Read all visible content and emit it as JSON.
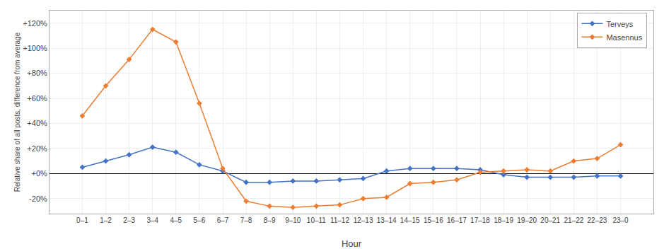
{
  "chart_data": {
    "type": "line",
    "xlabel": "Hour",
    "ylabel": "Relative share of all posts, difference from average",
    "categories": [
      "0–1",
      "1–2",
      "2–3",
      "3–4",
      "4–5",
      "5–6",
      "6–7",
      "7–8",
      "8–9",
      "9–10",
      "10–11",
      "11–12",
      "12–13",
      "13–14",
      "14–15",
      "15–16",
      "16–17",
      "17–18",
      "18–19",
      "19–20",
      "20–21",
      "21–22",
      "22–23",
      "23–0"
    ],
    "series": [
      {
        "name": "Terveys",
        "color": "#4472c4",
        "marker": "diamond",
        "values": [
          0.05,
          0.1,
          0.15,
          0.21,
          0.17,
          0.07,
          0.02,
          -0.07,
          -0.07,
          -0.06,
          -0.06,
          -0.05,
          -0.04,
          0.02,
          0.04,
          0.04,
          0.04,
          0.03,
          -0.01,
          -0.03,
          -0.03,
          -0.03,
          -0.02,
          -0.02
        ]
      },
      {
        "name": "Masennus",
        "color": "#ed7d31",
        "marker": "diamond",
        "values": [
          0.46,
          0.7,
          0.91,
          1.15,
          1.05,
          0.56,
          0.04,
          -0.22,
          -0.26,
          -0.27,
          -0.26,
          -0.25,
          -0.2,
          -0.19,
          -0.08,
          -0.07,
          -0.05,
          0.01,
          0.02,
          0.03,
          0.02,
          0.1,
          0.12,
          0.23
        ]
      }
    ],
    "ylim": [
      -0.32,
      1.3
    ],
    "yticks": [
      {
        "value": -0.2,
        "label": "-20%"
      },
      {
        "value": 0.0,
        "label": "+0%"
      },
      {
        "value": 0.2,
        "label": "+20%"
      },
      {
        "value": 0.4,
        "label": "+40%"
      },
      {
        "value": 0.6,
        "label": "+60%"
      },
      {
        "value": 0.8,
        "label": "+80%"
      },
      {
        "value": 1.0,
        "label": "+100%"
      },
      {
        "value": 1.2,
        "label": "+120%"
      }
    ],
    "grid": true,
    "legend": "upper right"
  }
}
